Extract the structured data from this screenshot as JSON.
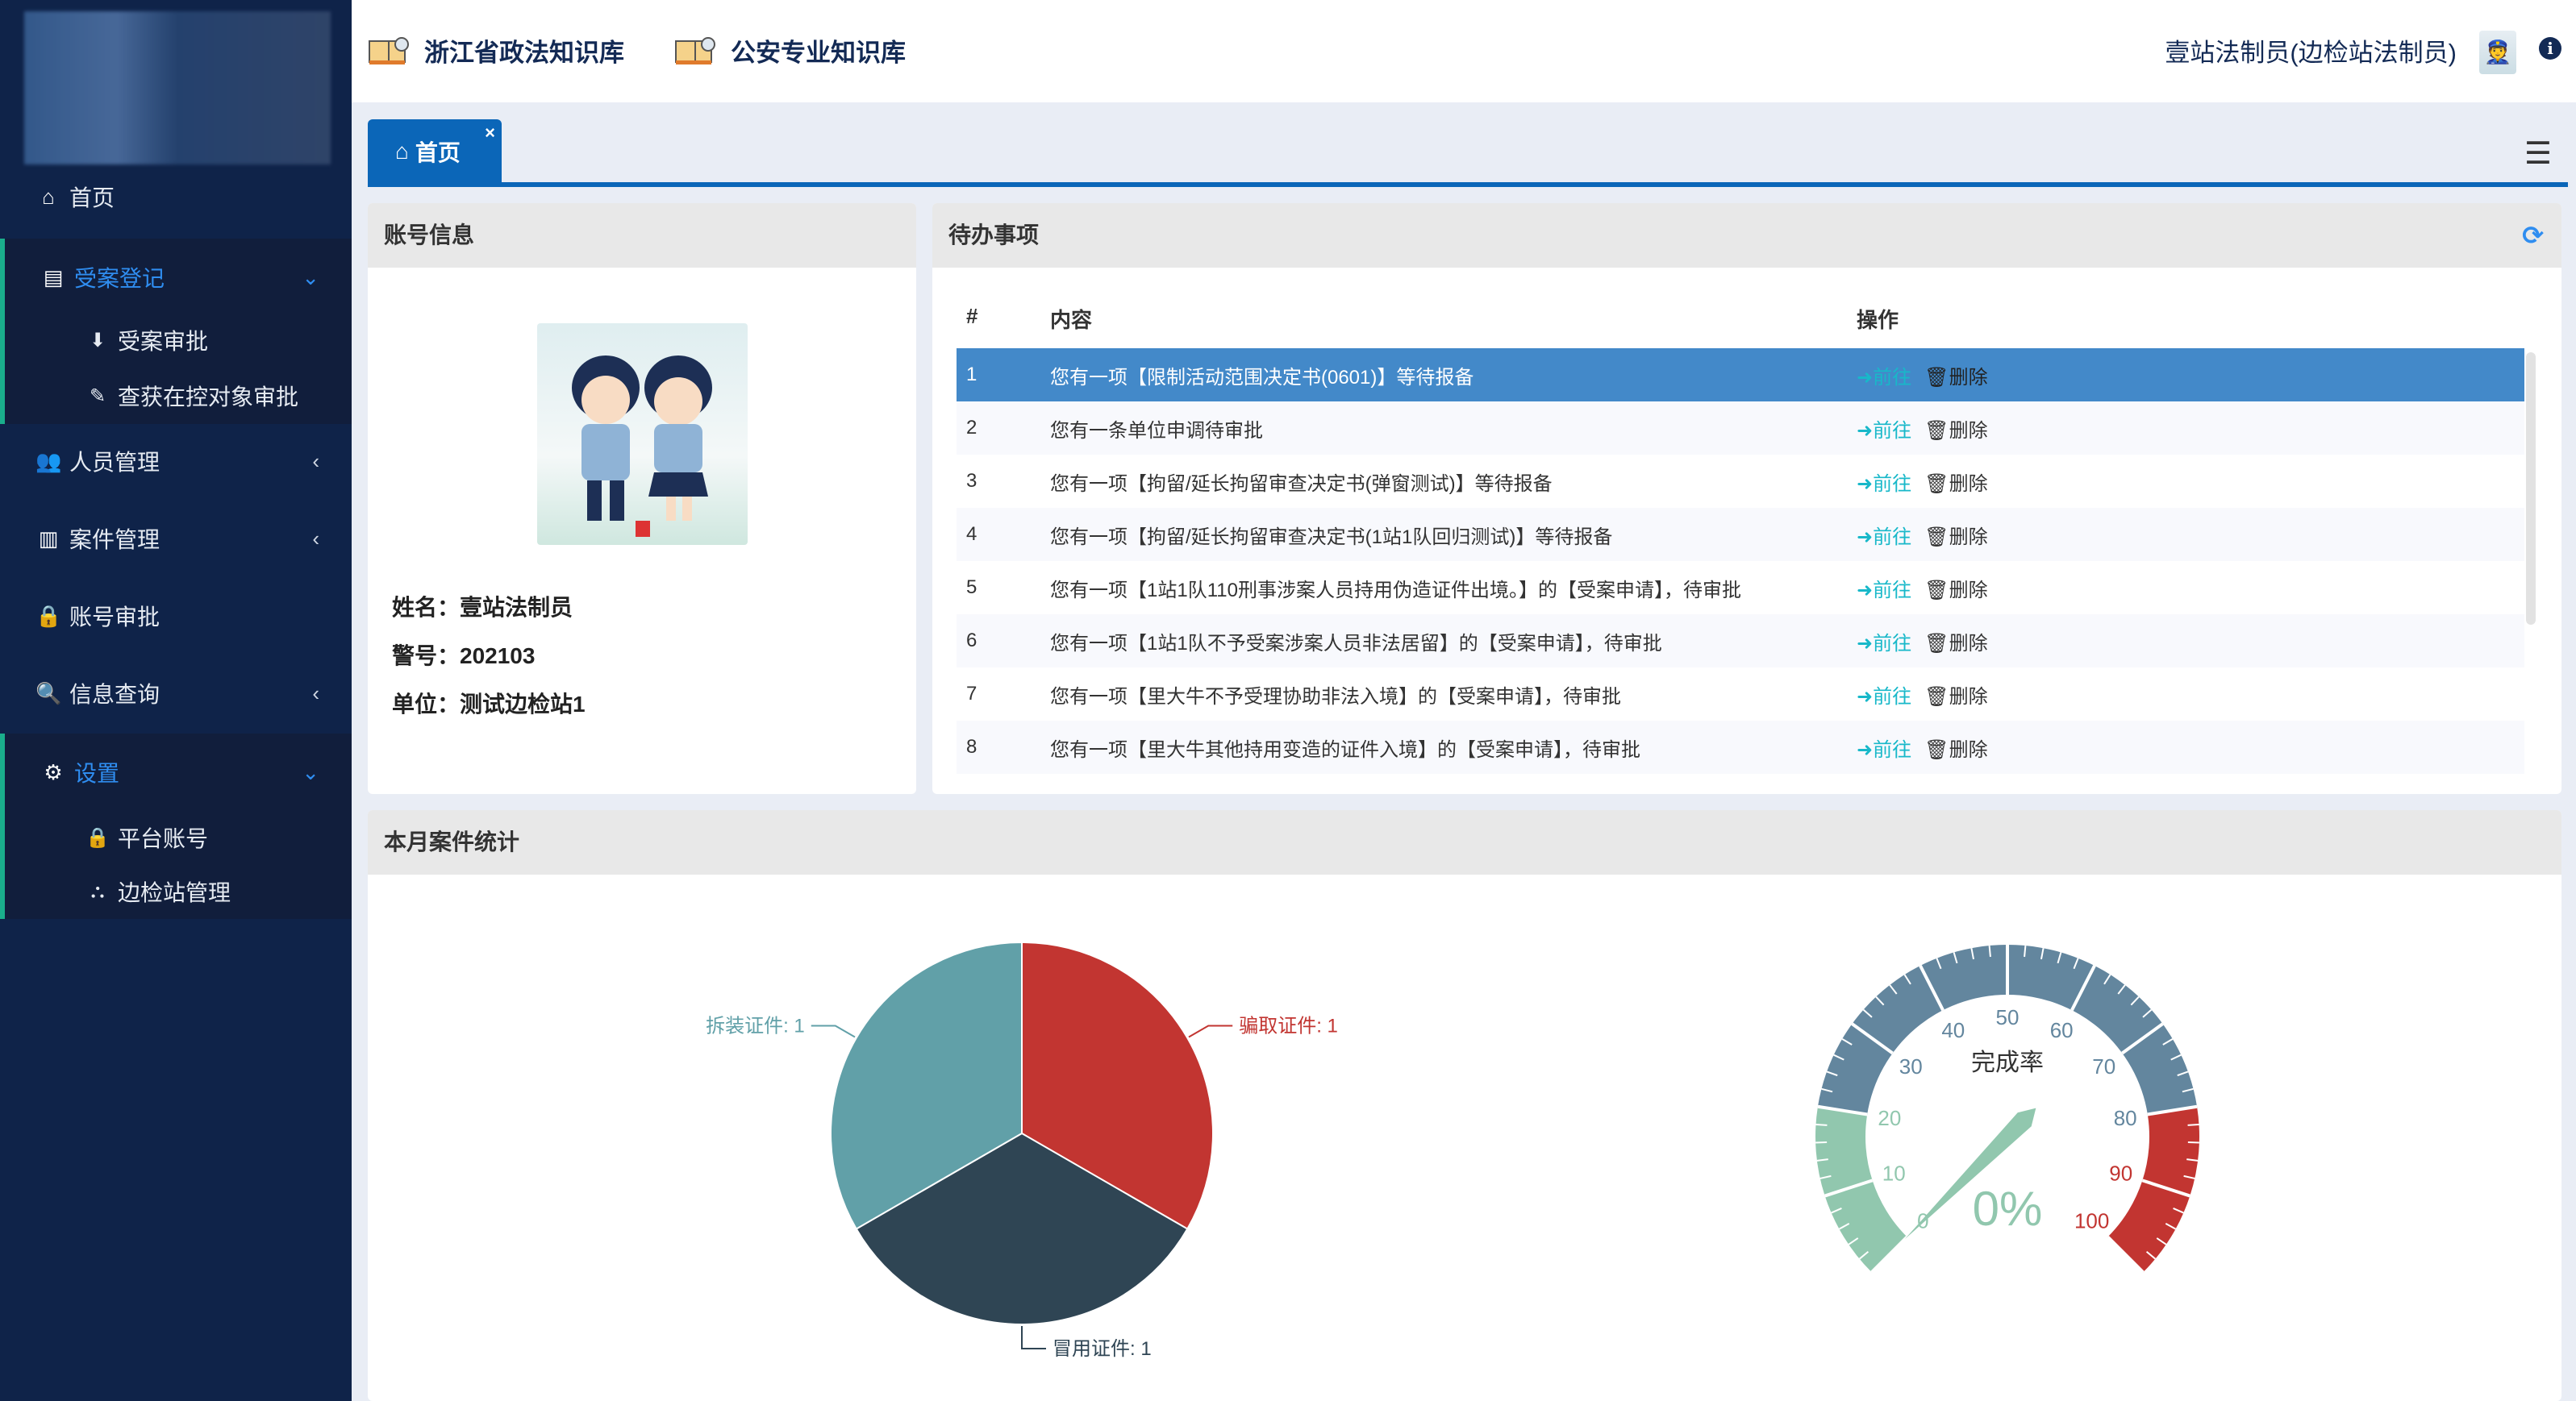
{
  "header": {
    "kb1": "浙江省政法知识库",
    "kb2": "公安专业知识库",
    "user": "壹站法制员(边检站法制员)"
  },
  "sidebar": {
    "home": "首页",
    "case_reg": {
      "label": "受案登记",
      "items": [
        "受案审批",
        "查获在控对象审批"
      ]
    },
    "personnel": "人员管理",
    "case_mgmt": "案件管理",
    "account_approval": "账号审批",
    "info_query": "信息查询",
    "settings": {
      "label": "设置",
      "items": [
        "平台账号",
        "边检站管理"
      ]
    }
  },
  "tabs": [
    {
      "label": "首页",
      "close": "×"
    }
  ],
  "account": {
    "title": "账号信息",
    "name_label": "姓名：",
    "name": "壹站法制员",
    "badge_label": "警号：",
    "badge": "202103",
    "unit_label": "单位：",
    "unit": "测试边检站1"
  },
  "todo": {
    "title": "待办事项",
    "columns": [
      "#",
      "内容",
      "操作"
    ],
    "go_label": "前往",
    "delete_label": "删除",
    "selected_row": 1,
    "rows": [
      {
        "n": "1",
        "text": "您有一项【限制活动范围决定书(0601)】等待报备"
      },
      {
        "n": "2",
        "text": "您有一条单位申调待审批"
      },
      {
        "n": "3",
        "text": "您有一项【拘留/延长拘留审查决定书(弹窗测试)】等待报备"
      },
      {
        "n": "4",
        "text": "您有一项【拘留/延长拘留审查决定书(1站1队回归测试)】等待报备"
      },
      {
        "n": "5",
        "text": "您有一项【1站1队110刑事涉案人员持用伪造证件出境。】的【受案申请】，待审批"
      },
      {
        "n": "6",
        "text": "您有一项【1站1队不予受案涉案人员非法居留】的【受案申请】，待审批"
      },
      {
        "n": "7",
        "text": "您有一项【里大牛不予受理协助非法入境】的【受案申请】，待审批"
      },
      {
        "n": "8",
        "text": "您有一项【里大牛其他持用变造的证件入境】的【受案申请】，待审批"
      }
    ]
  },
  "stats": {
    "title": "本月案件统计"
  },
  "chart_data": [
    {
      "type": "pie",
      "slices": [
        {
          "name": "骗取证件",
          "value": 1,
          "label": "骗取证件: 1",
          "color": "#c23531"
        },
        {
          "name": "冒用证件",
          "value": 1,
          "label": "冒用证件: 1",
          "color": "#2f4554"
        },
        {
          "name": "拆装证件",
          "value": 1,
          "label": "拆装证件: 1",
          "color": "#61a0a8"
        }
      ]
    },
    {
      "type": "gauge",
      "title": "完成率",
      "value": 0,
      "value_label": "0%",
      "min": 0,
      "max": 100,
      "ticks": [
        "0",
        "10",
        "20",
        "30",
        "40",
        "50",
        "60",
        "70",
        "80",
        "90",
        "100"
      ],
      "bands": [
        {
          "to": 20,
          "color": "#91c7ae"
        },
        {
          "to": 80,
          "color": "#63869e"
        },
        {
          "to": 100,
          "color": "#c23531"
        }
      ]
    }
  ],
  "colors": {
    "sidebar": "#0f2349",
    "accent": "#0b66b8",
    "selected_row": "#4389c9",
    "go": "#18b8c9",
    "active_menu": "#2f8df0"
  }
}
